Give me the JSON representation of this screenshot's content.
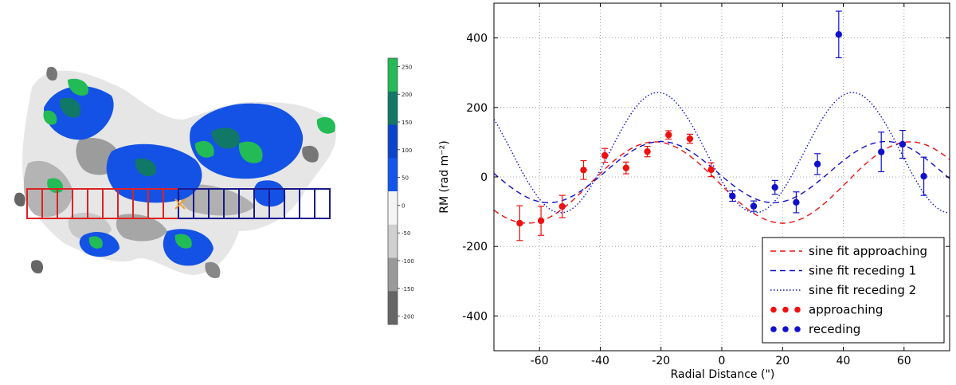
{
  "map": {
    "colorbar_ticks": [
      "250",
      "200",
      "150",
      "100",
      "50",
      "0",
      "-50",
      "-100",
      "-150",
      "-200"
    ],
    "colorbar_colors": [
      "#22bb55",
      "#117766",
      "#0a44cc",
      "#1155ee",
      "#f4f4f4",
      "#d0d0d0",
      "#9a9a9a",
      "#666666"
    ],
    "approaching_box_color": "#dd2222",
    "receding_box_color": "#1a1a8c",
    "center_marker_color": "#f0a030"
  },
  "chart_data": {
    "type": "scatter",
    "xlabel": "Radial Distance (\")",
    "ylabel": "RM (rad m⁻²)",
    "xlim": [
      -75,
      75
    ],
    "ylim": [
      -500,
      500
    ],
    "xticks": [
      -60,
      -40,
      -20,
      0,
      20,
      40,
      60
    ],
    "yticks": [
      -400,
      -200,
      0,
      200,
      400
    ],
    "grid": true,
    "legend_position": "bottom-right",
    "series": [
      {
        "name": "approaching",
        "color": "#ee1111",
        "points": [
          {
            "x": -66.5,
            "y": -133,
            "err": 50
          },
          {
            "x": -59.5,
            "y": -126,
            "err": 42
          },
          {
            "x": -52.5,
            "y": -85,
            "err": 32
          },
          {
            "x": -45.5,
            "y": 20,
            "err": 27
          },
          {
            "x": -38.5,
            "y": 62,
            "err": 20
          },
          {
            "x": -31.5,
            "y": 26,
            "err": 17
          },
          {
            "x": -24.5,
            "y": 73,
            "err": 15
          },
          {
            "x": -17.5,
            "y": 121,
            "err": 12
          },
          {
            "x": -10.5,
            "y": 110,
            "err": 13
          },
          {
            "x": -3.5,
            "y": 21,
            "err": 20
          }
        ]
      },
      {
        "name": "receding",
        "color": "#1111cc",
        "points": [
          {
            "x": 3.5,
            "y": -55,
            "err": 15
          },
          {
            "x": 10.5,
            "y": -84,
            "err": 15
          },
          {
            "x": 17.5,
            "y": -30,
            "err": 20
          },
          {
            "x": 24.5,
            "y": -73,
            "err": 30
          },
          {
            "x": 31.5,
            "y": 37,
            "err": 30
          },
          {
            "x": 38.5,
            "y": 410,
            "err": 67
          },
          {
            "x": 52.5,
            "y": 72,
            "err": 57
          },
          {
            "x": 59.5,
            "y": 94,
            "err": 40
          },
          {
            "x": 66.5,
            "y": 2,
            "err": 55
          }
        ]
      }
    ],
    "fits": [
      {
        "name": "sine fit approaching",
        "style": "dashed",
        "color": "#ee1111",
        "amplitude": 117,
        "offset": -16,
        "period": 84,
        "peak_x": -22
      },
      {
        "name": "sine fit receding 1",
        "style": "dashed",
        "color": "#1111cc",
        "amplitude": 88,
        "offset": 14,
        "period": 74,
        "peak_x": -20
      },
      {
        "name": "sine fit receding 2",
        "style": "dotted",
        "color": "#1111cc",
        "amplitude": 173,
        "offset": 70,
        "period": 64,
        "peak_x": -21
      }
    ]
  }
}
